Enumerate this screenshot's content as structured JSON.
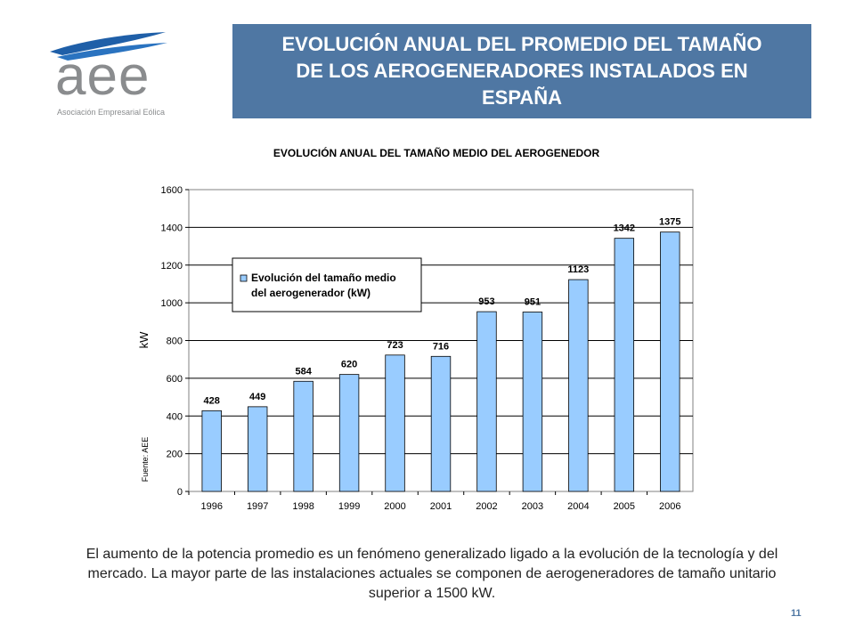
{
  "logo": {
    "text": "aee",
    "subtitle": "Asociación Empresarial Eólica"
  },
  "header": {
    "title": "EVOLUCIÓN ANUAL DEL PROMEDIO DEL TAMAÑO DE LOS AEROGENERADORES INSTALADOS EN ESPAÑA"
  },
  "chart_data": {
    "type": "bar",
    "title": "EVOLUCIÓN ANUAL DEL TAMAÑO MEDIO DEL AEROGENEDOR",
    "categories": [
      "1996",
      "1997",
      "1998",
      "1999",
      "2000",
      "2001",
      "2002",
      "2003",
      "2004",
      "2005",
      "2006"
    ],
    "values": [
      428,
      449,
      584,
      620,
      723,
      716,
      953,
      951,
      1123,
      1342,
      1375
    ],
    "ylabel": "kW",
    "xlabel": "",
    "ylim": [
      0,
      1600
    ],
    "yticks": [
      0,
      200,
      400,
      600,
      800,
      1000,
      1200,
      1400,
      1600
    ],
    "grid": true,
    "legend": "Evolución del tamaño medio del aerogenerador (kW)",
    "legend_lines": [
      "Evolución del tamaño medio",
      "del aerogenerador (kW)"
    ],
    "source": "Fuente: AEE",
    "bar_color": "#99ccff"
  },
  "footer": {
    "caption": "El aumento de la potencia promedio es un fenómeno generalizado ligado a la evolución de la tecnología y del mercado. La mayor parte de las instalaciones actuales se componen de aerogeneradores de tamaño unitario superior a 1500 kW.",
    "page_number": "11"
  }
}
